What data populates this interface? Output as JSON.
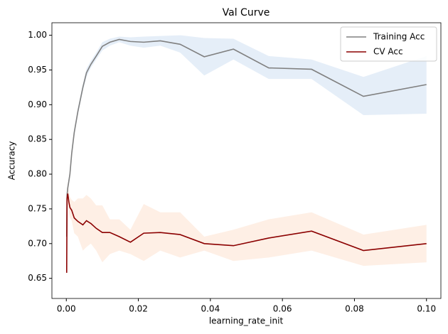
{
  "chart_data": {
    "type": "line",
    "title": "Val Curve",
    "x_label": "learning_rate_init",
    "y_label": "Accuracy",
    "x": [
      0.0001,
      0.0002,
      0.0004,
      0.0007,
      0.001,
      0.0015,
      0.0022,
      0.0032,
      0.0046,
      0.0056,
      0.0068,
      0.0083,
      0.01,
      0.0121,
      0.0147,
      0.0178,
      0.0215,
      0.0261,
      0.0316,
      0.0383,
      0.0464,
      0.0562,
      0.0681,
      0.0825,
      0.1
    ],
    "series": [
      {
        "name": "Training Acc",
        "color": "#808080",
        "band_color": "#dce8f5",
        "values": [
          0.71,
          0.77,
          0.78,
          0.79,
          0.8,
          0.83,
          0.86,
          0.89,
          0.925,
          0.946,
          0.958,
          0.97,
          0.984,
          0.99,
          0.994,
          0.991,
          0.99,
          0.992,
          0.987,
          0.969,
          0.98,
          0.953,
          0.951,
          0.912,
          0.929
        ],
        "lower": [
          0.7,
          0.76,
          0.775,
          0.785,
          0.795,
          0.825,
          0.855,
          0.885,
          0.92,
          0.94,
          0.953,
          0.965,
          0.978,
          0.985,
          0.99,
          0.985,
          0.982,
          0.985,
          0.975,
          0.942,
          0.965,
          0.937,
          0.937,
          0.885,
          0.887
        ],
        "upper": [
          0.72,
          0.78,
          0.785,
          0.795,
          0.805,
          0.835,
          0.865,
          0.895,
          0.93,
          0.952,
          0.963,
          0.975,
          0.99,
          0.995,
          0.998,
          0.997,
          0.998,
          0.999,
          1.0,
          0.996,
          0.995,
          0.97,
          0.965,
          0.94,
          0.97
        ]
      },
      {
        "name": "CV Acc",
        "color": "#8b0000",
        "band_color": "#fde9dc",
        "values": [
          0.658,
          0.765,
          0.772,
          0.76,
          0.752,
          0.748,
          0.737,
          0.732,
          0.727,
          0.733,
          0.729,
          0.722,
          0.716,
          0.716,
          0.71,
          0.702,
          0.715,
          0.716,
          0.713,
          0.7,
          0.697,
          0.708,
          0.718,
          0.69,
          0.7
        ],
        "lower": [
          0.65,
          0.75,
          0.757,
          0.745,
          0.737,
          0.733,
          0.715,
          0.71,
          0.69,
          0.695,
          0.7,
          0.69,
          0.673,
          0.685,
          0.69,
          0.685,
          0.675,
          0.69,
          0.68,
          0.69,
          0.675,
          0.68,
          0.69,
          0.668,
          0.673
        ],
        "upper": [
          0.668,
          0.78,
          0.787,
          0.775,
          0.767,
          0.763,
          0.76,
          0.765,
          0.765,
          0.77,
          0.765,
          0.755,
          0.755,
          0.735,
          0.735,
          0.72,
          0.757,
          0.745,
          0.745,
          0.71,
          0.72,
          0.735,
          0.745,
          0.713,
          0.727
        ]
      }
    ],
    "xlim": [
      -0.004,
      0.104
    ],
    "ylim": [
      0.621,
      1.018
    ],
    "xticks": [
      {
        "value": 0,
        "label": "0.00"
      },
      0.02,
      0.04,
      0.06,
      0.08,
      {
        "value": 0.1,
        "label": "0.10"
      }
    ],
    "yticks": [
      0.65,
      {
        "value": 0.7,
        "label": "0.70"
      },
      0.75,
      {
        "value": 0.8,
        "label": "0.80"
      },
      0.85,
      {
        "value": 0.9,
        "label": "0.90"
      },
      0.95,
      {
        "value": 1.0,
        "label": "1.00"
      }
    ],
    "legend": "upper right"
  }
}
